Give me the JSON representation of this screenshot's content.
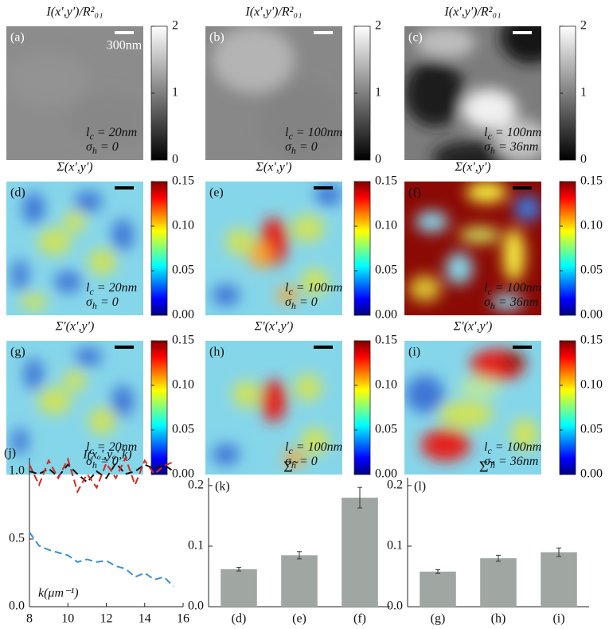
{
  "chart_data": [
    {
      "type": "image",
      "panel": "(a)",
      "title": "I(x',y')/R²₀₁",
      "scale_bar": "300nm",
      "annotations": [
        {
          "main": "l",
          "sub": "c",
          "rest": " = 20nm"
        },
        {
          "main": "σ",
          "sub": "h",
          "rest": " = 0"
        }
      ],
      "colormap": "gray",
      "clim": [
        0,
        2
      ],
      "cticks": [
        0,
        1,
        2
      ]
    },
    {
      "type": "image",
      "panel": "(b)",
      "title": "I(x',y')/R²₀₁",
      "annotations": [
        {
          "main": "l",
          "sub": "c",
          "rest": " = 100nm"
        },
        {
          "main": "σ",
          "sub": "h",
          "rest": " = 0"
        }
      ],
      "colormap": "gray",
      "clim": [
        0,
        2
      ],
      "cticks": [
        0,
        1,
        2
      ]
    },
    {
      "type": "image",
      "panel": "(c)",
      "title": "I(x',y')/R²₀₁",
      "annotations": [
        {
          "main": "l",
          "sub": "c",
          "rest": " = 100nm"
        },
        {
          "main": "σ",
          "sub": "h",
          "rest": " = 36nm"
        }
      ],
      "colormap": "gray",
      "clim": [
        0,
        2
      ],
      "cticks": [
        0,
        1,
        2
      ]
    },
    {
      "type": "image",
      "panel": "(d)",
      "title": "Σ(x',y')",
      "annotations": [
        {
          "main": "l",
          "sub": "c",
          "rest": " = 20nm"
        },
        {
          "main": "σ",
          "sub": "h",
          "rest": " = 0"
        }
      ],
      "colormap": "jet",
      "clim": [
        0,
        0.15
      ],
      "cticks": [
        {
          "value": 0,
          "label": "0.00"
        },
        {
          "value": 0.05,
          "label": "0.05"
        },
        {
          "value": 0.1,
          "label": "0.10"
        },
        {
          "value": 0.15,
          "label": "0.15"
        }
      ]
    },
    {
      "type": "image",
      "panel": "(e)",
      "title": "Σ(x',y')",
      "annotations": [
        {
          "main": "l",
          "sub": "c",
          "rest": " = 100nm"
        },
        {
          "main": "σ",
          "sub": "h",
          "rest": " = 0"
        }
      ],
      "colormap": "jet",
      "clim": [
        0,
        0.15
      ],
      "cticks": [
        {
          "value": 0,
          "label": "0.00"
        },
        {
          "value": 0.05,
          "label": "0.05"
        },
        {
          "value": 0.1,
          "label": "0.10"
        },
        {
          "value": 0.15,
          "label": "0.15"
        }
      ]
    },
    {
      "type": "image",
      "panel": "(f)",
      "title": "Σ(x',y')",
      "annotations": [
        {
          "main": "l",
          "sub": "c",
          "rest": " = 100nm"
        },
        {
          "main": "σ",
          "sub": "h",
          "rest": " = 36nm"
        }
      ],
      "colormap": "jet",
      "clim": [
        0,
        0.15
      ],
      "cticks": [
        {
          "value": 0,
          "label": "0.00"
        },
        {
          "value": 0.05,
          "label": "0.05"
        },
        {
          "value": 0.1,
          "label": "0.10"
        },
        {
          "value": 0.15,
          "label": "0.15"
        }
      ]
    },
    {
      "type": "image",
      "panel": "(g)",
      "title": "Σ'(x',y')",
      "annotations": [
        {
          "main": "l",
          "sub": "c",
          "rest": " = 20nm"
        },
        {
          "main": "σ",
          "sub": "h",
          "rest": " = 0"
        }
      ],
      "colormap": "jet",
      "clim": [
        0,
        0.15
      ],
      "cticks": [
        {
          "value": 0,
          "label": "0.00"
        },
        {
          "value": 0.05,
          "label": "0.05"
        },
        {
          "value": 0.1,
          "label": "0.10"
        },
        {
          "value": 0.15,
          "label": "0.15"
        }
      ]
    },
    {
      "type": "image",
      "panel": "(h)",
      "title": "Σ'(x',y')",
      "annotations": [
        {
          "main": "l",
          "sub": "c",
          "rest": " = 100nm"
        },
        {
          "main": "σ",
          "sub": "h",
          "rest": " = 0"
        }
      ],
      "colormap": "jet",
      "clim": [
        0,
        0.15
      ],
      "cticks": [
        {
          "value": 0,
          "label": "0.00"
        },
        {
          "value": 0.05,
          "label": "0.05"
        },
        {
          "value": 0.1,
          "label": "0.10"
        },
        {
          "value": 0.15,
          "label": "0.15"
        }
      ]
    },
    {
      "type": "image",
      "panel": "(i)",
      "title": "Σ'(x',y')",
      "annotations": [
        {
          "main": "l",
          "sub": "c",
          "rest": " = 100nm"
        },
        {
          "main": "σ",
          "sub": "h",
          "rest": " = 36nm"
        }
      ],
      "colormap": "jet",
      "clim": [
        0,
        0.15
      ],
      "cticks": [
        {
          "value": 0,
          "label": "0.00"
        },
        {
          "value": 0.05,
          "label": "0.05"
        },
        {
          "value": 0.1,
          "label": "0.10"
        },
        {
          "value": 0.15,
          "label": "0.15"
        }
      ]
    },
    {
      "type": "line",
      "panel": "(j)",
      "title": "I(xₒ',yₒ',k)",
      "annotation": "k(μm⁻¹)",
      "x": [
        8,
        8.5,
        9,
        9.5,
        10,
        10.5,
        11,
        11.5,
        12,
        12.5,
        13,
        13.5,
        14,
        14.5,
        15,
        15.5
      ],
      "series": [
        {
          "color": "#111111",
          "values": [
            1.0,
            0.98,
            1.02,
            0.96,
            1.05,
            0.98,
            0.92,
            1.0,
            0.95,
            1.06,
            0.98,
            1.0,
            1.05,
            1.02,
            1.05,
            1.0
          ]
        },
        {
          "color": "#d62a1e",
          "values": [
            1.05,
            0.9,
            1.08,
            0.95,
            1.09,
            0.85,
            0.98,
            0.88,
            1.06,
            0.95,
            1.1,
            0.9,
            1.08,
            0.98,
            1.04,
            1.07
          ]
        },
        {
          "color": "#3a8fd8",
          "values": [
            0.55,
            0.45,
            0.42,
            0.4,
            0.38,
            0.33,
            0.35,
            0.33,
            0.34,
            0.3,
            0.28,
            0.22,
            0.25,
            0.2,
            0.22,
            0.15
          ]
        }
      ],
      "xlim": [
        8,
        16
      ],
      "xticks": [
        8,
        10,
        12,
        14,
        16
      ],
      "ylim": [
        0,
        1.1
      ],
      "yticks": [
        {
          "value": 0,
          "label": "0.0"
        },
        {
          "value": 0.5,
          "label": "0.5"
        },
        {
          "value": 1,
          "label": "1.0"
        }
      ]
    },
    {
      "type": "bar",
      "panel": "(k)",
      "title": "Σ̃",
      "categories": [
        "(d)",
        "(e)",
        "(f)"
      ],
      "values": [
        0.062,
        0.085,
        0.18
      ],
      "errors": [
        0.003,
        0.006,
        0.017
      ],
      "color": "#a0a7a3",
      "ylim": [
        0,
        0.213
      ],
      "yticks": [
        {
          "value": 0,
          "label": "0.0"
        },
        {
          "value": 0.1,
          "label": "0.1"
        },
        {
          "value": 0.2,
          "label": "0.2"
        }
      ]
    },
    {
      "type": "bar",
      "panel": "(l)",
      "title": "Σ̃ '",
      "categories": [
        "(g)",
        "(h)",
        "(i)"
      ],
      "values": [
        0.058,
        0.08,
        0.09
      ],
      "errors": [
        0.003,
        0.005,
        0.007
      ],
      "color": "#a0a7a3",
      "ylim": [
        0,
        0.213
      ],
      "yticks": [
        {
          "value": 0,
          "label": "0.0"
        },
        {
          "value": 0.1,
          "label": "0.1"
        },
        {
          "value": 0.2,
          "label": "0.2"
        }
      ]
    }
  ]
}
